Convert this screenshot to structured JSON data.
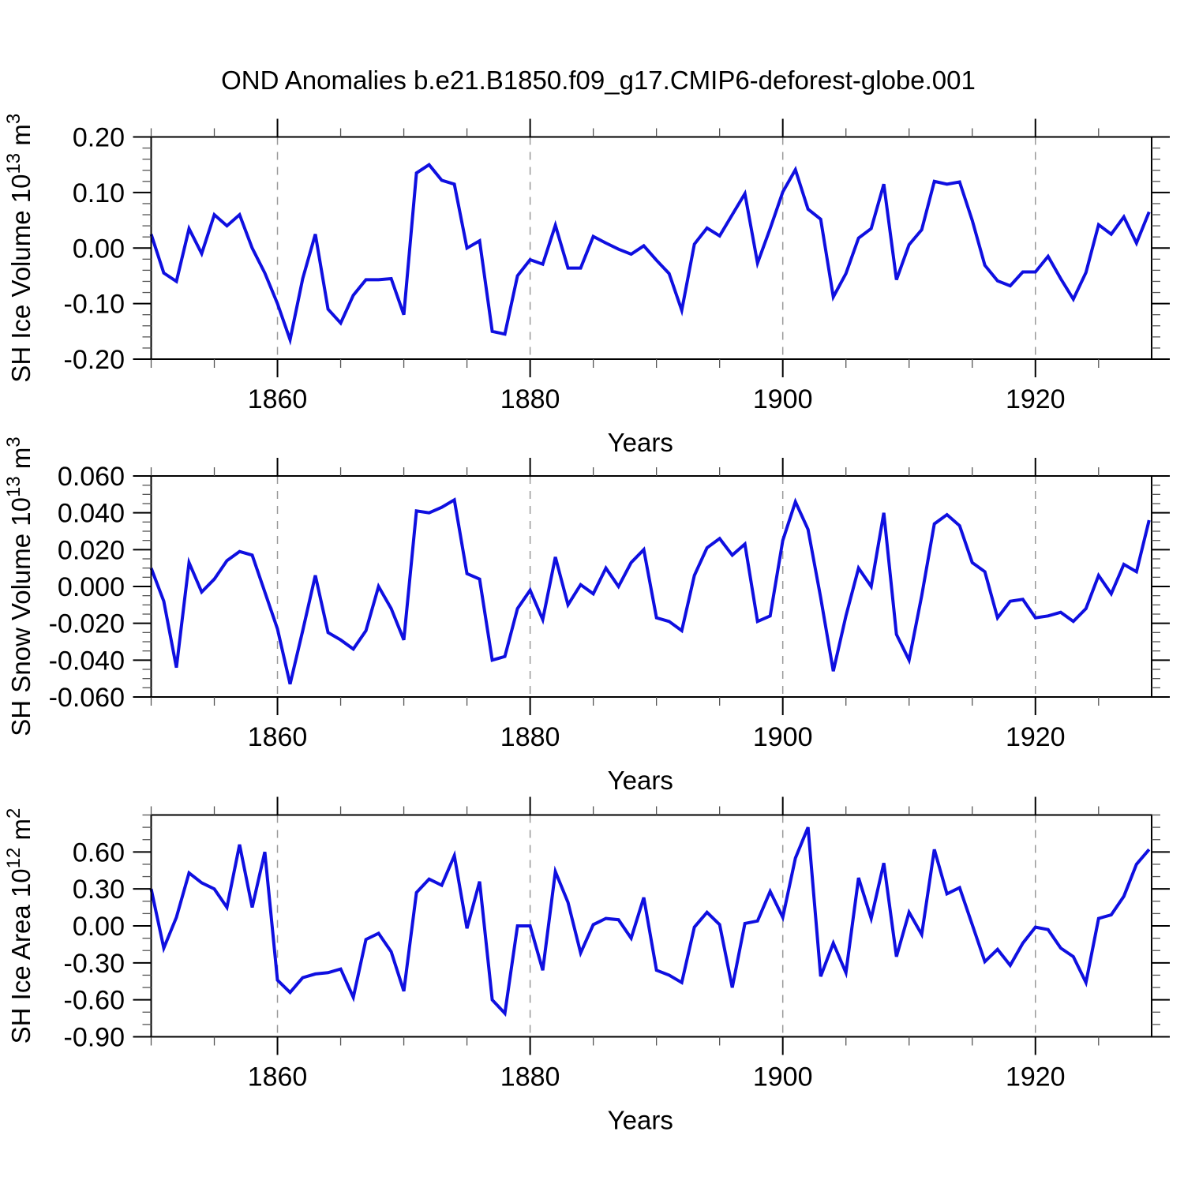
{
  "title": "OND Anomalies b.e21.B1850.f09_g17.CMIP6-deforest-globe.001",
  "line_color": "#0f0fe0",
  "grid_color": "#999999",
  "axis_color": "#000000",
  "x_axis": {
    "label": "Years",
    "xlim": [
      1850,
      1929.2
    ],
    "major_ticks": [
      1860,
      1880,
      1900,
      1920
    ],
    "major_tick_labels": [
      "1860",
      "1880",
      "1900",
      "1920"
    ],
    "minor_step": 5,
    "gridlines": [
      1860,
      1880,
      1900,
      1920
    ]
  },
  "years": [
    1850,
    1851,
    1852,
    1853,
    1854,
    1855,
    1856,
    1857,
    1858,
    1859,
    1860,
    1861,
    1862,
    1863,
    1864,
    1865,
    1866,
    1867,
    1868,
    1869,
    1870,
    1871,
    1872,
    1873,
    1874,
    1875,
    1876,
    1877,
    1878,
    1879,
    1880,
    1881,
    1882,
    1883,
    1884,
    1885,
    1886,
    1887,
    1888,
    1889,
    1890,
    1891,
    1892,
    1893,
    1894,
    1895,
    1896,
    1897,
    1898,
    1899,
    1900,
    1901,
    1902,
    1903,
    1904,
    1905,
    1906,
    1907,
    1908,
    1909,
    1910,
    1911,
    1912,
    1913,
    1914,
    1915,
    1916,
    1917,
    1918,
    1919,
    1920,
    1921,
    1922,
    1923,
    1924,
    1925,
    1926,
    1927,
    1928,
    1929
  ],
  "chart_data": [
    {
      "type": "line",
      "name": "sh-ice-volume",
      "ylabel": "SH Ice Volume 10^13 m^3",
      "ylabel_parts": [
        {
          "t": "SH Ice Volume 10"
        },
        {
          "t": "13",
          "sup": true
        },
        {
          "t": " m"
        },
        {
          "t": "3",
          "sup": true
        }
      ],
      "xlabel": "Years",
      "ylim": [
        -0.2,
        0.2
      ],
      "ytick_values": [
        0.2,
        0.1,
        0.0,
        -0.1,
        -0.2
      ],
      "ytick_labels": [
        "0.20",
        "0.10",
        "0.00",
        "-0.10",
        "-0.20"
      ],
      "ytick_minor_step": 0.02,
      "grid": "vertical-dashed",
      "legend": "none",
      "values": [
        0.025,
        -0.045,
        -0.06,
        0.035,
        -0.01,
        0.06,
        0.04,
        0.06,
        0.0,
        -0.045,
        -0.1,
        -0.165,
        -0.055,
        0.025,
        -0.11,
        -0.135,
        -0.085,
        -0.057,
        -0.057,
        -0.055,
        -0.12,
        0.135,
        0.15,
        0.122,
        0.115,
        0.0,
        0.013,
        -0.15,
        -0.155,
        -0.05,
        -0.021,
        -0.029,
        0.041,
        -0.036,
        -0.036,
        0.021,
        0.009,
        -0.002,
        -0.011,
        0.004,
        -0.022,
        -0.046,
        -0.112,
        0.007,
        0.036,
        0.022,
        0.06,
        0.098,
        -0.027,
        0.035,
        0.101,
        0.141,
        0.07,
        0.052,
        -0.088,
        -0.046,
        0.018,
        0.035,
        0.115,
        -0.057,
        0.006,
        0.033,
        0.12,
        0.115,
        0.119,
        0.05,
        -0.031,
        -0.059,
        -0.068,
        -0.043,
        -0.043,
        -0.015,
        -0.055,
        -0.092,
        -0.044,
        0.042,
        0.025,
        0.056,
        0.009,
        0.065
      ]
    },
    {
      "type": "line",
      "name": "sh-snow-volume",
      "ylabel": "SH Snow Volume 10^13 m^3",
      "ylabel_parts": [
        {
          "t": "SH Snow Volume 10"
        },
        {
          "t": "13",
          "sup": true
        },
        {
          "t": " m"
        },
        {
          "t": "3",
          "sup": true
        }
      ],
      "xlabel": "Years",
      "ylim": [
        -0.06,
        0.06
      ],
      "ytick_values": [
        0.06,
        0.04,
        0.02,
        0.0,
        -0.02,
        -0.04,
        -0.06
      ],
      "ytick_labels": [
        "0.060",
        "0.040",
        "0.020",
        "0.000",
        "-0.020",
        "-0.040",
        "-0.060"
      ],
      "ytick_minor_step": 0.005,
      "grid": "vertical-dashed",
      "legend": "none",
      "values": [
        0.01,
        -0.008,
        -0.044,
        0.013,
        -0.003,
        0.004,
        0.014,
        0.019,
        0.017,
        -0.003,
        -0.023,
        -0.053,
        -0.024,
        0.006,
        -0.025,
        -0.029,
        -0.034,
        -0.024,
        0.0,
        -0.012,
        -0.029,
        0.041,
        0.04,
        0.043,
        0.047,
        0.007,
        0.004,
        -0.04,
        -0.038,
        -0.012,
        -0.002,
        -0.018,
        0.016,
        -0.01,
        0.001,
        -0.004,
        0.01,
        0.0,
        0.013,
        0.02,
        -0.017,
        -0.019,
        -0.024,
        0.006,
        0.021,
        0.026,
        0.017,
        0.023,
        -0.019,
        -0.016,
        0.025,
        0.046,
        0.031,
        -0.006,
        -0.046,
        -0.016,
        0.01,
        0.0,
        0.04,
        -0.026,
        -0.04,
        -0.005,
        0.034,
        0.039,
        0.033,
        0.013,
        0.008,
        -0.017,
        -0.008,
        -0.007,
        -0.017,
        -0.016,
        -0.014,
        -0.019,
        -0.012,
        0.006,
        -0.004,
        0.012,
        0.008,
        0.036
      ]
    },
    {
      "type": "line",
      "name": "sh-ice-area",
      "ylabel": "SH Ice Area 10^12 m^2",
      "ylabel_parts": [
        {
          "t": "SH Ice Area 10"
        },
        {
          "t": "12",
          "sup": true
        },
        {
          "t": " m"
        },
        {
          "t": "2",
          "sup": true
        }
      ],
      "xlabel": "Years",
      "ylim": [
        -0.9,
        0.9
      ],
      "ytick_values": [
        0.6,
        0.3,
        0.0,
        -0.3,
        -0.6,
        -0.9
      ],
      "ytick_labels": [
        "0.60",
        "0.30",
        "0.00",
        "-0.30",
        "-0.60",
        "-0.90"
      ],
      "ytick_minor_step": 0.1,
      "grid": "vertical-dashed",
      "legend": "none",
      "values": [
        0.3,
        -0.18,
        0.07,
        0.43,
        0.35,
        0.3,
        0.15,
        0.66,
        0.15,
        0.6,
        -0.44,
        -0.54,
        -0.42,
        -0.39,
        -0.38,
        -0.35,
        -0.58,
        -0.11,
        -0.06,
        -0.21,
        -0.53,
        0.27,
        0.38,
        0.33,
        0.57,
        -0.02,
        0.36,
        -0.6,
        -0.71,
        0.0,
        0.0,
        -0.36,
        0.44,
        0.19,
        -0.22,
        0.01,
        0.06,
        0.05,
        -0.1,
        0.23,
        -0.36,
        -0.4,
        -0.46,
        -0.01,
        0.11,
        0.01,
        -0.5,
        0.02,
        0.04,
        0.28,
        0.07,
        0.55,
        0.8,
        -0.41,
        -0.14,
        -0.38,
        0.39,
        0.06,
        0.51,
        -0.25,
        0.11,
        -0.07,
        0.62,
        0.26,
        0.31,
        0.01,
        -0.29,
        -0.19,
        -0.32,
        -0.14,
        -0.01,
        -0.03,
        -0.18,
        -0.25,
        -0.46,
        0.06,
        0.09,
        0.24,
        0.5,
        0.62
      ]
    }
  ]
}
